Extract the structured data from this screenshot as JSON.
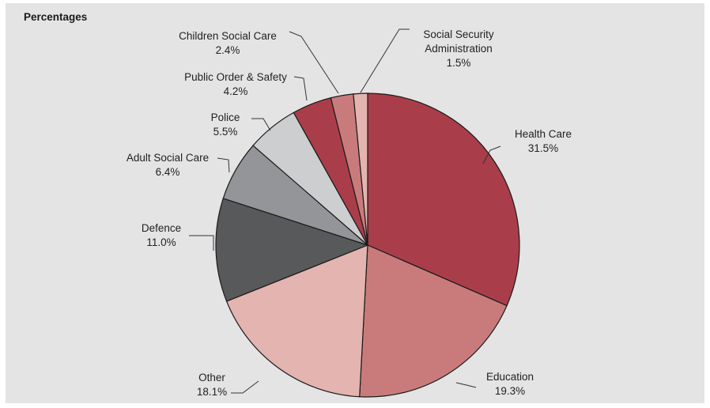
{
  "chart_data": {
    "type": "pie",
    "title": "",
    "subtitle": "Percentages",
    "unit": "%",
    "slices": [
      {
        "label": "Health Care",
        "value": 31.5,
        "value_text": "31.5%",
        "color": "#a93e4a"
      },
      {
        "label": "Education",
        "value": 19.3,
        "value_text": "19.3%",
        "color": "#c97b7c"
      },
      {
        "label": "Other",
        "value": 18.1,
        "value_text": "18.1%",
        "color": "#e4b4b0"
      },
      {
        "label": "Defence",
        "value": 11.0,
        "value_text": "11.0%",
        "color": "#58595b"
      },
      {
        "label": "Adult Social Care",
        "value": 6.4,
        "value_text": "6.4%",
        "color": "#939598"
      },
      {
        "label": "Police",
        "value": 5.5,
        "value_text": "5.5%",
        "color": "#cdcecf"
      },
      {
        "label": "Public Order & Safety",
        "value": 4.2,
        "value_text": "4.2%",
        "color": "#a93e4a"
      },
      {
        "label": "Children Social Care",
        "value": 2.4,
        "value_text": "2.4%",
        "color": "#c97b7c"
      },
      {
        "label": "Social Security Administration",
        "label_lines": [
          "Social Security",
          "Administration"
        ],
        "value": 1.5,
        "value_text": "1.5%",
        "color": "#e4b4b0"
      }
    ],
    "start_angle_deg": 0,
    "direction": "clockwise",
    "legend": "none"
  }
}
